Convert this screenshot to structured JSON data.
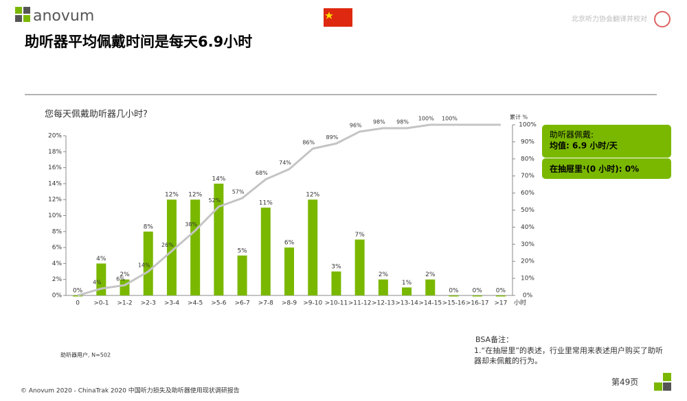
{
  "header": {
    "logo": "anovum",
    "title": "助听器平均佩戴时间是每天6.9小时",
    "credit": "北京听力协会翻译并校对"
  },
  "summary": {
    "line1": "助听器佩戴:",
    "line2": "均值: 6.9 小时/天",
    "line3": "在抽屉里¹(0 小时): 0%"
  },
  "note": "助听器用户, N=502",
  "bsa": {
    "title": "BSA备注：",
    "text": "1.“在抽屉里”的表述，行业里常用来表述用户购买了助听器却未佩戴的行为。"
  },
  "footer": {
    "copyright": "© Anovum 2020 - ChinaTrak 2020 中国听力损失及助听器使用现状调研报告",
    "page": "第49页"
  },
  "chart_data": {
    "type": "bar",
    "title": "您每天佩戴助听器几小时?",
    "x_unit": "小时",
    "y2_label": "累计 %",
    "categories": [
      "0",
      ">0-1",
      ">1-2",
      ">2-3",
      ">3-4",
      ">4-5",
      ">5-6",
      ">6-7",
      ">7-8",
      ">8-9",
      ">9-10",
      ">10-11",
      ">11-12",
      ">12-13",
      ">13-14",
      ">14-15",
      ">15-16",
      ">16-17",
      ">17"
    ],
    "series": [
      {
        "name": "每天佩戴",
        "type": "bar",
        "color": "#7ab800",
        "values": [
          0,
          4,
          2,
          8,
          12,
          12,
          14,
          5,
          11,
          6,
          12,
          3,
          7,
          2,
          1,
          2,
          0,
          0,
          0
        ],
        "value_labels": [
          "0%",
          "4%",
          "2%",
          "8%",
          "12%",
          "12%",
          "14%",
          "5%",
          "11%",
          "6%",
          "12%",
          "3%",
          "7%",
          "2%",
          "1%",
          "2%",
          "0%",
          "0%",
          "0%"
        ]
      },
      {
        "name": "累计",
        "type": "line",
        "axis": "y2",
        "color": "#c4c4c4",
        "values": [
          0,
          4,
          6,
          14,
          26,
          38,
          52,
          57,
          68,
          74,
          86,
          89,
          96,
          98,
          98,
          100,
          100,
          100,
          100
        ],
        "value_labels": [
          null,
          "4%",
          "6%",
          "14%",
          "26%",
          "38%",
          "52%",
          "57%",
          "68%",
          "74%",
          "86%",
          "89%",
          "96%",
          "98%",
          "98%",
          "100%",
          "100%",
          null,
          null
        ]
      }
    ],
    "ylim": [
      0,
      20
    ],
    "yticks": [
      {
        "value": 0,
        "label": "0%"
      },
      {
        "value": 2,
        "label": "2%"
      },
      {
        "value": 4,
        "label": "4%"
      },
      {
        "value": 6,
        "label": "6%"
      },
      {
        "value": 8,
        "label": "8%"
      },
      {
        "value": 10,
        "label": "10%"
      },
      {
        "value": 12,
        "label": "12%"
      },
      {
        "value": 14,
        "label": "14%"
      },
      {
        "value": 16,
        "label": "16%"
      },
      {
        "value": 18,
        "label": "18%"
      },
      {
        "value": 20,
        "label": "20%"
      }
    ],
    "y2lim": [
      0,
      100
    ],
    "y2ticks": [
      {
        "value": 0,
        "label": "0%"
      },
      {
        "value": 10,
        "label": "10%"
      },
      {
        "value": 20,
        "label": "20%"
      },
      {
        "value": 30,
        "label": "30%"
      },
      {
        "value": 40,
        "label": "40%"
      },
      {
        "value": 50,
        "label": "50%"
      },
      {
        "value": 60,
        "label": "60%"
      },
      {
        "value": 70,
        "label": "70%"
      },
      {
        "value": 80,
        "label": "80%"
      },
      {
        "value": 90,
        "label": "90%"
      },
      {
        "value": 100,
        "label": "100%"
      }
    ]
  }
}
